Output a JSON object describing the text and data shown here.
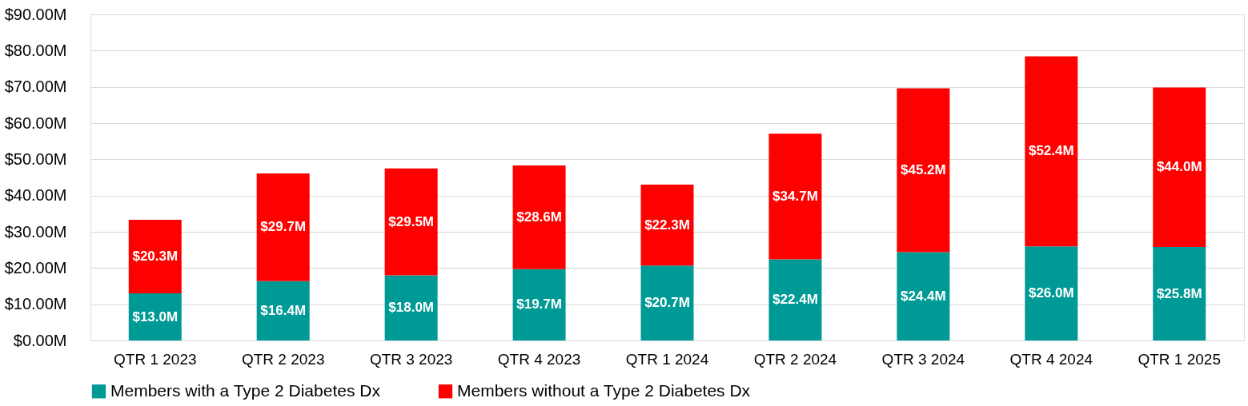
{
  "chart_data": {
    "type": "bar",
    "stacked": true,
    "categories": [
      "QTR 1 2023",
      "QTR 2 2023",
      "QTR 3 2023",
      "QTR 4 2023",
      "QTR 1 2024",
      "QTR 2 2024",
      "QTR 3 2024",
      "QTR 4 2024",
      "QTR 1 2025"
    ],
    "series": [
      {
        "name": "Members with a Type 2 Diabetes Dx",
        "color": "#009a96",
        "values": [
          13.0,
          16.4,
          18.0,
          19.7,
          20.7,
          22.4,
          24.4,
          26.0,
          25.8
        ],
        "value_labels": [
          "$13.0M",
          "$16.4M",
          "$18.0M",
          "$19.7M",
          "$20.7M",
          "$22.4M",
          "$24.4M",
          "$26.0M",
          "$25.8M"
        ]
      },
      {
        "name": "Members without a Type 2 Diabetes Dx",
        "color": "#ff0000",
        "values": [
          20.3,
          29.7,
          29.5,
          28.6,
          22.3,
          34.7,
          45.2,
          52.4,
          44.0
        ],
        "value_labels": [
          "$20.3M",
          "$29.7M",
          "$29.5M",
          "$28.6M",
          "$22.3M",
          "$34.7M",
          "$45.2M",
          "$52.4M",
          "$44.0M"
        ]
      }
    ],
    "ylim": [
      0,
      90
    ],
    "yticks": [
      {
        "value": 0,
        "label": "$0.00M"
      },
      {
        "value": 10,
        "label": "$10.00M"
      },
      {
        "value": 20,
        "label": "$20.00M"
      },
      {
        "value": 30,
        "label": "$30.00M"
      },
      {
        "value": 40,
        "label": "$40.00M"
      },
      {
        "value": 50,
        "label": "$50.00M"
      },
      {
        "value": 60,
        "label": "$60.00M"
      },
      {
        "value": 70,
        "label": "$70.00M"
      },
      {
        "value": 80,
        "label": "$80.00M"
      },
      {
        "value": 90,
        "label": "$90.00M"
      }
    ],
    "grid": "y",
    "legend": "bottom"
  }
}
